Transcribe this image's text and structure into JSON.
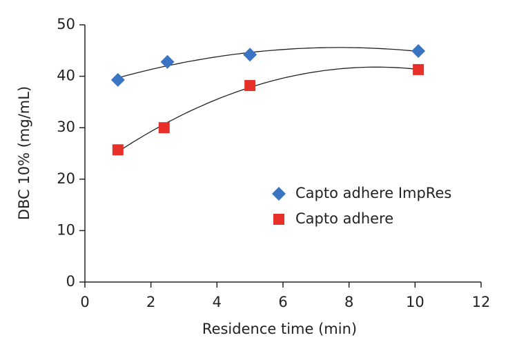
{
  "chart_data": {
    "type": "scatter",
    "x_label": "Residence time (min)",
    "y_label": "DBC 10% (mg/mL)",
    "xlim": [
      0,
      12
    ],
    "xticks": [
      0,
      2,
      4,
      6,
      8,
      10,
      12
    ],
    "ylim": [
      0,
      50
    ],
    "yticks": [
      0,
      10,
      20,
      30,
      40,
      50
    ],
    "grid": false,
    "legend": "right",
    "trendline": "quadratic",
    "series": [
      {
        "name": "Capto adhere ImpRes",
        "color": "#3a75c4",
        "marker": "diamond",
        "x": [
          1.0,
          2.5,
          5.0,
          10.1
        ],
        "values": [
          39.3,
          42.8,
          44.2,
          44.9
        ]
      },
      {
        "name": "Capto adhere",
        "color": "#e8302a",
        "marker": "square",
        "x": [
          1.0,
          2.4,
          5.0,
          10.1
        ],
        "values": [
          25.7,
          30.0,
          38.2,
          41.3
        ]
      }
    ]
  }
}
